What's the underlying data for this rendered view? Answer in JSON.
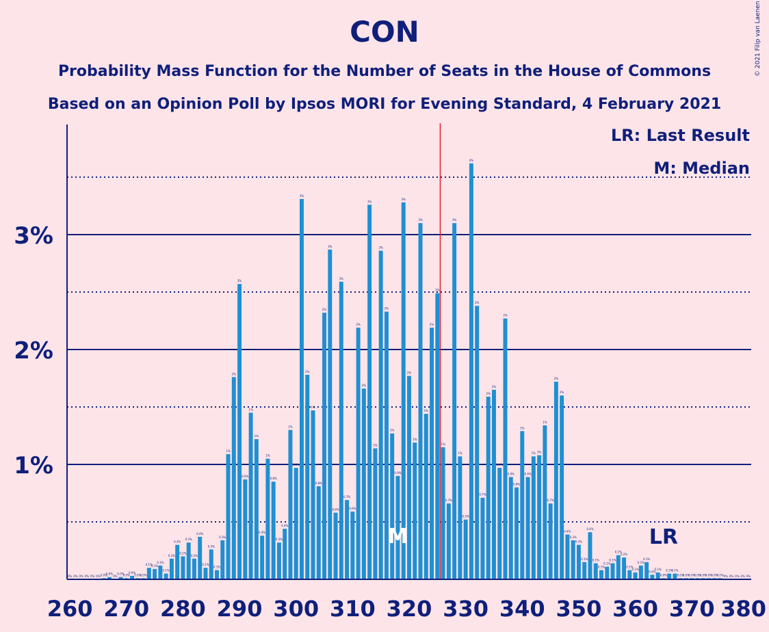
{
  "title": "CON",
  "subtitle_lines": [
    "Probability Mass Function for the Number of Seats in the House of Commons",
    "Based on an Opinion Poll by Ipsos MORI for Evening Standard, 4 February 2021"
  ],
  "credit": "© 2021 Filip van Laenen",
  "legend": {
    "lr": "LR: Last Result",
    "m": "M: Median"
  },
  "markers": {
    "median_label": "M",
    "median_seat": 318,
    "last_result_label": "LR",
    "last_result_seat": 365,
    "majority_seat": 326
  },
  "colors": {
    "background": "#fde4e8",
    "bar": "#1f8fd1",
    "axis": "#0f1f7a",
    "majority_line": "#e0202e",
    "median_marker": "#ffffff"
  },
  "chart_data": {
    "type": "bar",
    "xlabel": "",
    "ylabel": "",
    "x_ticks": [
      260,
      270,
      280,
      290,
      300,
      310,
      320,
      330,
      340,
      350,
      360,
      370,
      380
    ],
    "y_ticks": [
      {
        "value": 1,
        "label": "1%"
      },
      {
        "value": 2,
        "label": "2%"
      },
      {
        "value": 3,
        "label": "3%"
      }
    ],
    "ylim": [
      0,
      3.95
    ],
    "xlim": [
      259.5,
      380.5
    ],
    "gridlines": {
      "solid": [
        1,
        2,
        3
      ],
      "dotted": [
        0.5,
        1.5,
        2.5,
        3.5
      ]
    },
    "x": [
      260,
      261,
      262,
      263,
      264,
      265,
      266,
      267,
      268,
      269,
      270,
      271,
      272,
      273,
      274,
      275,
      276,
      277,
      278,
      279,
      280,
      281,
      282,
      283,
      284,
      285,
      286,
      287,
      288,
      289,
      290,
      291,
      292,
      293,
      294,
      295,
      296,
      297,
      298,
      299,
      300,
      301,
      302,
      303,
      304,
      305,
      306,
      307,
      308,
      309,
      310,
      311,
      312,
      313,
      314,
      315,
      316,
      317,
      318,
      319,
      320,
      321,
      322,
      323,
      324,
      325,
      326,
      327,
      328,
      329,
      330,
      331,
      332,
      333,
      334,
      335,
      336,
      337,
      338,
      339,
      340,
      341,
      342,
      343,
      344,
      345,
      346,
      347,
      348,
      349,
      350,
      351,
      352,
      353,
      354,
      355,
      356,
      357,
      358,
      359,
      360,
      361,
      362,
      363,
      364,
      365,
      366,
      367,
      368,
      369,
      370,
      371,
      372,
      373,
      374,
      375,
      376,
      377,
      378,
      379,
      380
    ],
    "values": [
      0,
      0,
      0,
      0,
      0,
      0,
      0.01,
      0.02,
      0,
      0.02,
      0.01,
      0.03,
      0.01,
      0.01,
      0.1,
      0.09,
      0.12,
      0.05,
      0.18,
      0.3,
      0.2,
      0.32,
      0.18,
      0.37,
      0.1,
      0.26,
      0.08,
      0.34,
      1.09,
      1.76,
      2.57,
      0.87,
      1.45,
      1.22,
      0.38,
      1.05,
      0.85,
      0.32,
      0.44,
      1.3,
      0.97,
      3.31,
      1.78,
      1.47,
      0.81,
      2.32,
      2.87,
      0.58,
      2.59,
      0.69,
      0.59,
      2.19,
      1.66,
      3.26,
      1.14,
      2.86,
      2.33,
      1.27,
      0.9,
      3.28,
      1.77,
      1.19,
      3.1,
      1.44,
      2.19,
      2.49,
      1.15,
      0.66,
      3.1,
      1.07,
      0.52,
      3.62,
      2.38,
      0.71,
      1.59,
      1.65,
      0.97,
      2.27,
      0.89,
      0.8,
      1.29,
      0.89,
      1.07,
      1.08,
      1.34,
      0.66,
      1.72,
      1.6,
      0.39,
      0.34,
      0.3,
      0.15,
      0.41,
      0.14,
      0.08,
      0.11,
      0.14,
      0.21,
      0.19,
      0.08,
      0.06,
      0.12,
      0.15,
      0.04,
      0.06,
      0.01,
      0.05,
      0.05,
      0.01,
      0.01,
      0.01,
      0.01,
      0.01,
      0.01,
      0.01,
      0.01,
      0,
      0,
      0,
      0,
      0
    ]
  }
}
